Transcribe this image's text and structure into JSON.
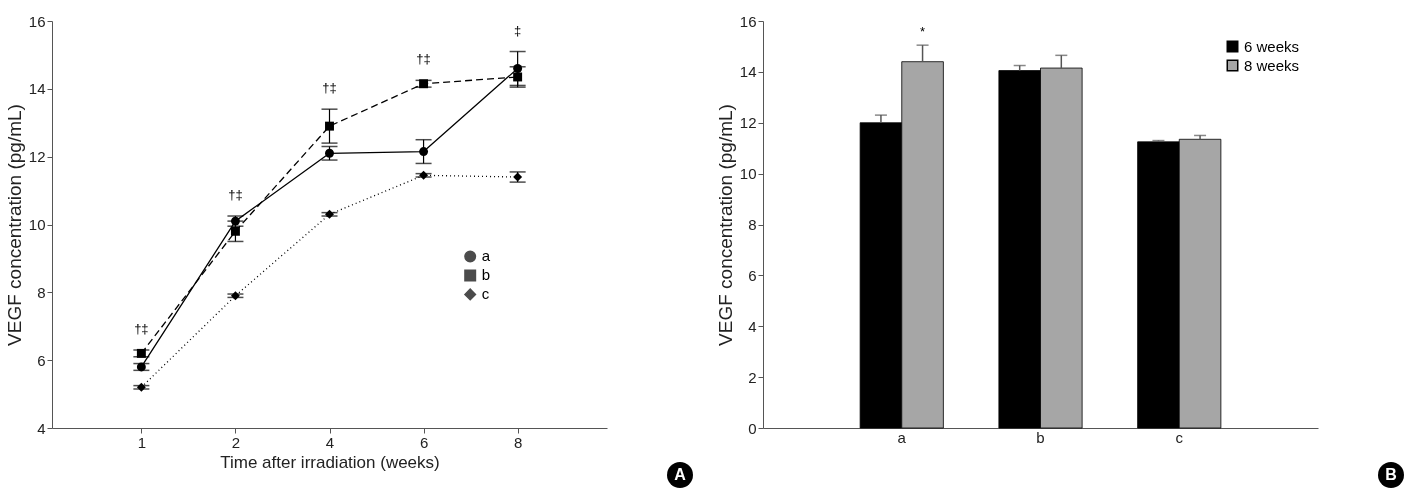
{
  "chart_data": [
    {
      "type": "line",
      "ylabel": "VEGF concentration (pg/mL)",
      "xlabel": "Time after irradiation (weeks)",
      "categories": [
        "1",
        "2",
        "4",
        "6",
        "8"
      ],
      "ylim": [
        4,
        16
      ],
      "yticks": [
        4,
        6,
        8,
        10,
        12,
        14,
        16
      ],
      "grid": false,
      "legend": "right",
      "series": [
        {
          "name": "a",
          "color": "#000000",
          "marker": "circle",
          "line_style": "solid",
          "values": [
            5.8,
            10.1,
            12.1,
            12.15,
            14.6
          ],
          "errors": [
            0.1,
            0.15,
            0.2,
            0.35,
            0.5
          ]
        },
        {
          "name": "b",
          "color": "#000000",
          "marker": "square",
          "line_style": "dashed",
          "values": [
            6.2,
            9.8,
            12.9,
            14.15,
            14.35
          ],
          "errors": [
            0.1,
            0.3,
            0.5,
            0.1,
            0.3
          ]
        },
        {
          "name": "c",
          "color": "#000000",
          "marker": "diamond",
          "line_style": "dotted",
          "values": [
            5.2,
            7.9,
            10.3,
            11.45,
            11.4
          ],
          "errors": [
            0.05,
            0.05,
            0.05,
            0.05,
            0.15
          ]
        }
      ],
      "annotations": [
        "†‡",
        "†‡",
        "†‡",
        "†‡",
        "‡",
        "A"
      ]
    },
    {
      "type": "bar",
      "ylabel": "VEGF concentration (pg/mL)",
      "categories": [
        "a",
        "b",
        "c"
      ],
      "ylim": [
        0,
        16
      ],
      "yticks": [
        0,
        2,
        4,
        6,
        8,
        10,
        12,
        14,
        16
      ],
      "grid": false,
      "legend": "top right",
      "series": [
        {
          "name": "6 weeks",
          "color": "#000000",
          "values": [
            12.0,
            14.05,
            11.25
          ],
          "errors": [
            [
              12.0,
              12.3
            ],
            [
              14.05,
              14.25
            ],
            [
              11.25,
              11.3
            ]
          ]
        },
        {
          "name": "8 weeks",
          "color": "#a6a6a6",
          "values": [
            14.4,
            14.15,
            11.35
          ],
          "errors": [
            [
              14.4,
              15.05
            ],
            [
              14.15,
              14.65
            ],
            [
              11.35,
              11.5
            ]
          ]
        }
      ],
      "annotations": [
        "*",
        "B"
      ]
    }
  ]
}
